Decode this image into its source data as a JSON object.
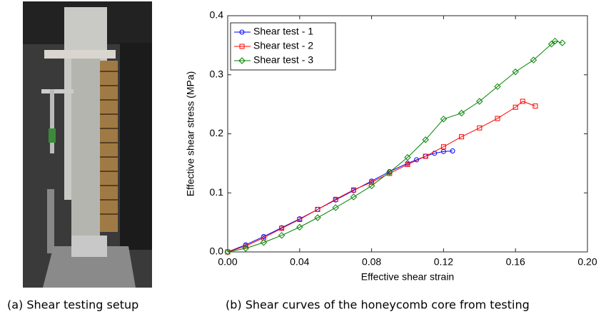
{
  "chart_data": {
    "type": "line",
    "xlabel": "Effective shear strain",
    "ylabel": "Effective shear stress (MPa)",
    "xlim": [
      0,
      0.2
    ],
    "ylim": [
      0,
      0.4
    ],
    "xticks": [
      {
        "value": 0,
        "label": "0.00"
      },
      0.04,
      0.08,
      0.12,
      0.16,
      {
        "value": 0.2,
        "label": "0.20"
      }
    ],
    "yticks": [
      {
        "value": 0,
        "label": "0.0"
      },
      0.1,
      0.2,
      0.3,
      0.4
    ],
    "legend": "upper left",
    "series": [
      {
        "name": "Shear test - 1",
        "color": "#0000ff",
        "marker": "circle",
        "x": [
          0,
          0.01,
          0.02,
          0.03,
          0.04,
          0.05,
          0.06,
          0.07,
          0.08,
          0.09,
          0.1,
          0.105,
          0.11,
          0.115,
          0.12,
          0.125
        ],
        "values": [
          0,
          0.012,
          0.026,
          0.041,
          0.056,
          0.072,
          0.088,
          0.104,
          0.12,
          0.136,
          0.15,
          0.156,
          0.162,
          0.167,
          0.17,
          0.171
        ]
      },
      {
        "name": "Shear test - 2",
        "color": "#ff0000",
        "marker": "square",
        "x": [
          0,
          0.01,
          0.02,
          0.03,
          0.04,
          0.05,
          0.06,
          0.07,
          0.08,
          0.09,
          0.1,
          0.11,
          0.12,
          0.13,
          0.14,
          0.15,
          0.16,
          0.164,
          0.171
        ],
        "values": [
          0,
          0.01,
          0.024,
          0.04,
          0.055,
          0.072,
          0.089,
          0.105,
          0.118,
          0.133,
          0.148,
          0.162,
          0.178,
          0.195,
          0.21,
          0.226,
          0.245,
          0.255,
          0.247
        ]
      },
      {
        "name": "Shear test - 3",
        "color": "#008000",
        "marker": "diamond",
        "x": [
          0,
          0.01,
          0.02,
          0.03,
          0.04,
          0.05,
          0.06,
          0.07,
          0.08,
          0.09,
          0.1,
          0.11,
          0.12,
          0.13,
          0.14,
          0.15,
          0.16,
          0.17,
          0.18,
          0.182,
          0.186
        ],
        "values": [
          0,
          0.006,
          0.016,
          0.028,
          0.042,
          0.058,
          0.075,
          0.093,
          0.112,
          0.135,
          0.16,
          0.19,
          0.225,
          0.235,
          0.255,
          0.28,
          0.305,
          0.325,
          0.352,
          0.357,
          0.354
        ]
      }
    ]
  },
  "captions": {
    "a": "(a) Shear testing setup",
    "b": "(b) Shear curves of the honeycomb core from testing"
  }
}
